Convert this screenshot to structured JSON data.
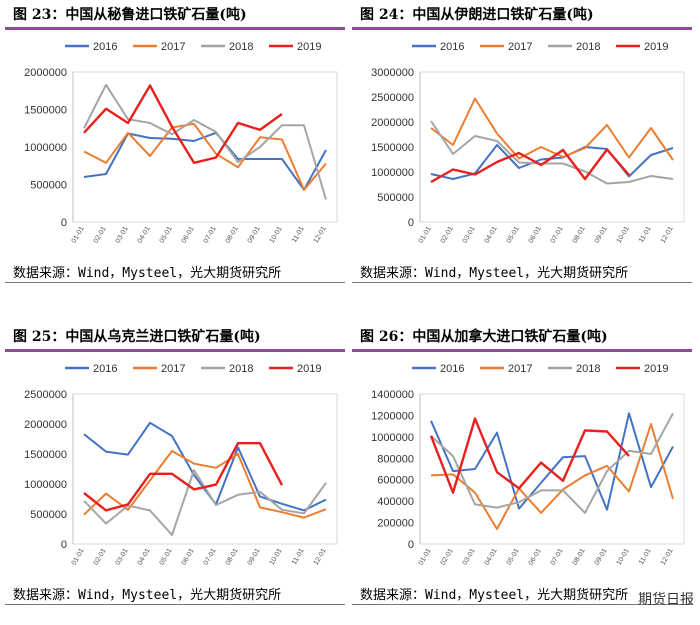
{
  "panels": [
    {
      "title": "图 23：中国从秘鲁进口铁矿石量(吨)",
      "source": "数据来源：Wind，Mysteel，光大期货研究所"
    },
    {
      "title": "图 24：中国从伊朗进口铁矿石量(吨)",
      "source": "数据来源：Wind，Mysteel，光大期货研究所"
    },
    {
      "title": "图 25：中国从乌克兰进口铁矿石量(吨)",
      "source": "数据来源：Wind，Mysteel，光大期货研究所"
    },
    {
      "title": "图 26：中国从加拿大进口铁矿石量(吨)",
      "source": "数据来源：Wind，Mysteel，光大期货研究所"
    }
  ],
  "watermark": "期货日报",
  "colors": {
    "2016": "#4472c4",
    "2017": "#ed7d31",
    "2018": "#a5a5a5",
    "2019": "#e8201e",
    "rule": "#8e4b9c"
  },
  "chart_data": [
    {
      "type": "line",
      "categories": [
        "01-01",
        "02-01",
        "03-01",
        "04-01",
        "05-01",
        "06-01",
        "07-01",
        "08-01",
        "09-01",
        "10-01",
        "11-01",
        "12-01"
      ],
      "ylim": [
        0,
        2000000
      ],
      "yticks": [
        "0",
        "500000",
        "1000000",
        "1500000",
        "2000000"
      ],
      "legend": "top",
      "series": [
        {
          "name": "2016",
          "values": [
            600000,
            640000,
            1180000,
            1120000,
            1110000,
            1080000,
            1190000,
            840000,
            840000,
            840000,
            430000,
            960000
          ]
        },
        {
          "name": "2017",
          "values": [
            940000,
            790000,
            1190000,
            880000,
            1260000,
            1310000,
            910000,
            730000,
            1130000,
            1100000,
            430000,
            780000
          ]
        },
        {
          "name": "2018",
          "values": [
            1250000,
            1830000,
            1370000,
            1320000,
            1170000,
            1360000,
            1200000,
            800000,
            1000000,
            1290000,
            1290000,
            300000
          ]
        },
        {
          "name": "2019",
          "values": [
            1190000,
            1510000,
            1320000,
            1820000,
            1270000,
            790000,
            860000,
            1320000,
            1230000,
            1440000,
            null,
            null
          ]
        }
      ]
    },
    {
      "type": "line",
      "categories": [
        "01-01",
        "02-01",
        "03-01",
        "04-01",
        "05-01",
        "06-01",
        "07-01",
        "08-01",
        "09-01",
        "10-01",
        "11-01",
        "12-01"
      ],
      "ylim": [
        0,
        3000000
      ],
      "yticks": [
        "0",
        "500000",
        "1000000",
        "1500000",
        "2000000",
        "2500000",
        "3000000"
      ],
      "legend": "top",
      "series": [
        {
          "name": "2016",
          "values": [
            960000,
            860000,
            970000,
            1540000,
            1080000,
            1250000,
            1290000,
            1500000,
            1460000,
            910000,
            1340000,
            1480000
          ]
        },
        {
          "name": "2017",
          "values": [
            1880000,
            1540000,
            2470000,
            1770000,
            1270000,
            1500000,
            1300000,
            1480000,
            1940000,
            1290000,
            1880000,
            1240000
          ]
        },
        {
          "name": "2018",
          "values": [
            2020000,
            1360000,
            1720000,
            1620000,
            1190000,
            1170000,
            1170000,
            1010000,
            770000,
            800000,
            920000,
            860000
          ]
        },
        {
          "name": "2019",
          "values": [
            800000,
            1050000,
            950000,
            1200000,
            1380000,
            1140000,
            1440000,
            860000,
            1450000,
            940000,
            null,
            null
          ]
        }
      ]
    },
    {
      "type": "line",
      "categories": [
        "01-01",
        "02-01",
        "03-01",
        "04-01",
        "05-01",
        "06-01",
        "07-01",
        "08-01",
        "09-01",
        "10-01",
        "11-01",
        "12-01"
      ],
      "ylim": [
        0,
        2500000
      ],
      "yticks": [
        "0",
        "500000",
        "1000000",
        "1500000",
        "2000000",
        "2500000"
      ],
      "legend": "top",
      "series": [
        {
          "name": "2016",
          "values": [
            1830000,
            1540000,
            1490000,
            2020000,
            1800000,
            1150000,
            660000,
            1610000,
            790000,
            670000,
            560000,
            740000
          ]
        },
        {
          "name": "2017",
          "values": [
            490000,
            840000,
            570000,
            1060000,
            1550000,
            1340000,
            1270000,
            1500000,
            610000,
            530000,
            440000,
            580000
          ]
        },
        {
          "name": "2018",
          "values": [
            720000,
            340000,
            640000,
            560000,
            150000,
            1230000,
            650000,
            820000,
            870000,
            570000,
            510000,
            1020000
          ]
        },
        {
          "name": "2019",
          "values": [
            850000,
            560000,
            660000,
            1170000,
            1170000,
            910000,
            990000,
            1680000,
            1680000,
            980000,
            null,
            null
          ]
        }
      ]
    },
    {
      "type": "line",
      "categories": [
        "01-01",
        "02-01",
        "03-01",
        "04-01",
        "05-01",
        "06-01",
        "07-01",
        "08-01",
        "09-01",
        "10-01",
        "11-01",
        "12-01"
      ],
      "ylim": [
        0,
        1400000
      ],
      "yticks": [
        "0",
        "200000",
        "400000",
        "600000",
        "800000",
        "1000000",
        "1200000",
        "1400000"
      ],
      "legend": "top",
      "series": [
        {
          "name": "2016",
          "values": [
            1150000,
            680000,
            700000,
            1040000,
            330000,
            570000,
            810000,
            820000,
            320000,
            1220000,
            530000,
            910000
          ]
        },
        {
          "name": "2017",
          "values": [
            640000,
            650000,
            480000,
            140000,
            520000,
            290000,
            510000,
            640000,
            730000,
            490000,
            1120000,
            420000
          ]
        },
        {
          "name": "2018",
          "values": [
            1010000,
            820000,
            370000,
            340000,
            390000,
            500000,
            500000,
            290000,
            680000,
            870000,
            840000,
            1220000
          ]
        },
        {
          "name": "2019",
          "values": [
            1010000,
            480000,
            1170000,
            670000,
            520000,
            760000,
            590000,
            1060000,
            1050000,
            820000,
            null,
            null
          ]
        }
      ]
    }
  ]
}
